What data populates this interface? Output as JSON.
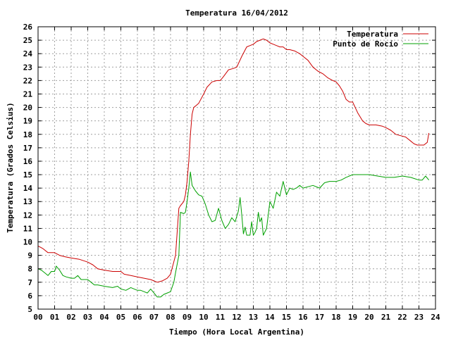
{
  "chart_data": {
    "type": "line",
    "title": "Temperatura 16/04/2012",
    "xlabel": "Tiempo (Hora Local Argentina)",
    "ylabel": "Temperatura (Grados Celsius)",
    "xlim": [
      0,
      24
    ],
    "ylim": [
      5,
      26
    ],
    "x_ticks": [
      "00",
      "01",
      "02",
      "03",
      "04",
      "05",
      "06",
      "07",
      "08",
      "09",
      "10",
      "11",
      "12",
      "13",
      "14",
      "15",
      "16",
      "17",
      "18",
      "19",
      "20",
      "21",
      "22",
      "23",
      "24"
    ],
    "y_ticks": [
      "5",
      "6",
      "7",
      "8",
      "9",
      "10",
      "11",
      "12",
      "13",
      "14",
      "15",
      "16",
      "17",
      "18",
      "19",
      "20",
      "21",
      "22",
      "23",
      "24",
      "25",
      "26"
    ],
    "grid": true,
    "legend_position": "top-right",
    "series": [
      {
        "name": "Temperatura",
        "color": "#cc0000",
        "x": [
          0,
          0.3,
          0.6,
          1.0,
          1.3,
          1.6,
          2.0,
          2.5,
          3.0,
          3.3,
          3.6,
          4.0,
          4.5,
          5.0,
          5.2,
          5.6,
          6.0,
          6.4,
          6.8,
          7.2,
          7.5,
          7.8,
          8.0,
          8.3,
          8.5,
          8.6,
          8.8,
          8.9,
          9.0,
          9.1,
          9.2,
          9.3,
          9.4,
          9.5,
          9.7,
          10.0,
          10.2,
          10.5,
          10.8,
          11.0,
          11.2,
          11.5,
          11.8,
          12.0,
          12.3,
          12.6,
          12.8,
          13.0,
          13.2,
          13.4,
          13.6,
          13.8,
          14.0,
          14.2,
          14.4,
          14.6,
          14.8,
          15.0,
          15.2,
          15.5,
          15.8,
          16.0,
          16.3,
          16.6,
          16.9,
          17.2,
          17.5,
          17.8,
          18.0,
          18.2,
          18.4,
          18.6,
          18.8,
          19.0,
          19.3,
          19.6,
          19.8,
          20.0,
          20.4,
          20.8,
          21.0,
          21.3,
          21.6,
          21.9,
          22.2,
          22.5,
          22.7,
          22.9,
          23.1,
          23.3,
          23.5,
          23.6
        ],
        "values": [
          9.7,
          9.5,
          9.2,
          9.2,
          9.0,
          8.9,
          8.8,
          8.7,
          8.5,
          8.3,
          8.0,
          7.9,
          7.8,
          7.8,
          7.6,
          7.5,
          7.4,
          7.3,
          7.2,
          7.0,
          7.1,
          7.3,
          7.6,
          9.0,
          12.5,
          12.7,
          13.0,
          13.5,
          14.5,
          16.0,
          18.0,
          19.5,
          20.0,
          20.1,
          20.3,
          21.0,
          21.5,
          21.9,
          22.0,
          22.0,
          22.3,
          22.8,
          22.9,
          23.0,
          23.8,
          24.5,
          24.6,
          24.7,
          24.9,
          25.0,
          25.1,
          25.0,
          24.8,
          24.7,
          24.6,
          24.5,
          24.5,
          24.3,
          24.3,
          24.2,
          24.0,
          23.8,
          23.5,
          23.0,
          22.7,
          22.5,
          22.2,
          22.0,
          21.9,
          21.6,
          21.2,
          20.6,
          20.4,
          20.4,
          19.6,
          19.0,
          18.8,
          18.7,
          18.7,
          18.6,
          18.5,
          18.3,
          18.0,
          17.9,
          17.8,
          17.5,
          17.3,
          17.2,
          17.2,
          17.2,
          17.4,
          18.1
        ]
      },
      {
        "name": "Punto de Rocío",
        "color": "#00a000",
        "x": [
          0,
          0.2,
          0.4,
          0.6,
          0.8,
          1.0,
          1.1,
          1.3,
          1.5,
          1.7,
          2.0,
          2.2,
          2.4,
          2.6,
          3.0,
          3.2,
          3.4,
          3.6,
          4.0,
          4.5,
          4.8,
          5.0,
          5.3,
          5.6,
          6.0,
          6.2,
          6.4,
          6.6,
          6.8,
          7.0,
          7.2,
          7.4,
          7.6,
          7.8,
          8.0,
          8.2,
          8.3,
          8.5,
          8.6,
          8.8,
          8.9,
          9.0,
          9.1,
          9.2,
          9.3,
          9.5,
          9.7,
          9.9,
          10.1,
          10.3,
          10.5,
          10.7,
          10.9,
          11.1,
          11.3,
          11.5,
          11.7,
          11.9,
          12.1,
          12.2,
          12.3,
          12.4,
          12.5,
          12.6,
          12.7,
          12.8,
          12.9,
          13.0,
          13.1,
          13.2,
          13.3,
          13.4,
          13.5,
          13.6,
          13.8,
          14.0,
          14.2,
          14.4,
          14.6,
          14.8,
          15.0,
          15.2,
          15.4,
          15.6,
          15.8,
          16.0,
          16.3,
          16.6,
          17.0,
          17.3,
          17.6,
          18.0,
          18.3,
          18.6,
          19.0,
          19.3,
          19.6,
          20.0,
          20.5,
          21.0,
          21.5,
          22.0,
          22.5,
          23.0,
          23.2,
          23.4,
          23.6
        ],
        "values": [
          8.0,
          7.9,
          7.7,
          7.5,
          7.8,
          7.8,
          8.2,
          7.9,
          7.5,
          7.4,
          7.3,
          7.3,
          7.5,
          7.2,
          7.2,
          7.0,
          6.8,
          6.8,
          6.7,
          6.6,
          6.7,
          6.5,
          6.4,
          6.6,
          6.4,
          6.4,
          6.3,
          6.2,
          6.5,
          6.2,
          5.9,
          5.9,
          6.1,
          6.2,
          6.3,
          7.0,
          7.7,
          9.0,
          12.2,
          12.1,
          12.2,
          13.0,
          14.0,
          15.2,
          14.2,
          13.8,
          13.5,
          13.4,
          12.8,
          12.0,
          11.5,
          11.6,
          12.5,
          11.6,
          11.0,
          11.3,
          11.8,
          11.5,
          12.3,
          13.3,
          12.0,
          10.6,
          11.1,
          10.5,
          10.5,
          10.5,
          11.5,
          10.5,
          10.7,
          11.0,
          12.2,
          11.5,
          11.8,
          10.5,
          11.0,
          13.0,
          12.5,
          13.7,
          13.4,
          14.5,
          13.5,
          14.0,
          13.9,
          14.0,
          14.2,
          14.0,
          14.1,
          14.2,
          14.0,
          14.4,
          14.5,
          14.5,
          14.6,
          14.8,
          15.0,
          15.0,
          15.0,
          15.0,
          14.9,
          14.8,
          14.8,
          14.9,
          14.8,
          14.6,
          14.6,
          14.9,
          14.6
        ]
      }
    ]
  }
}
